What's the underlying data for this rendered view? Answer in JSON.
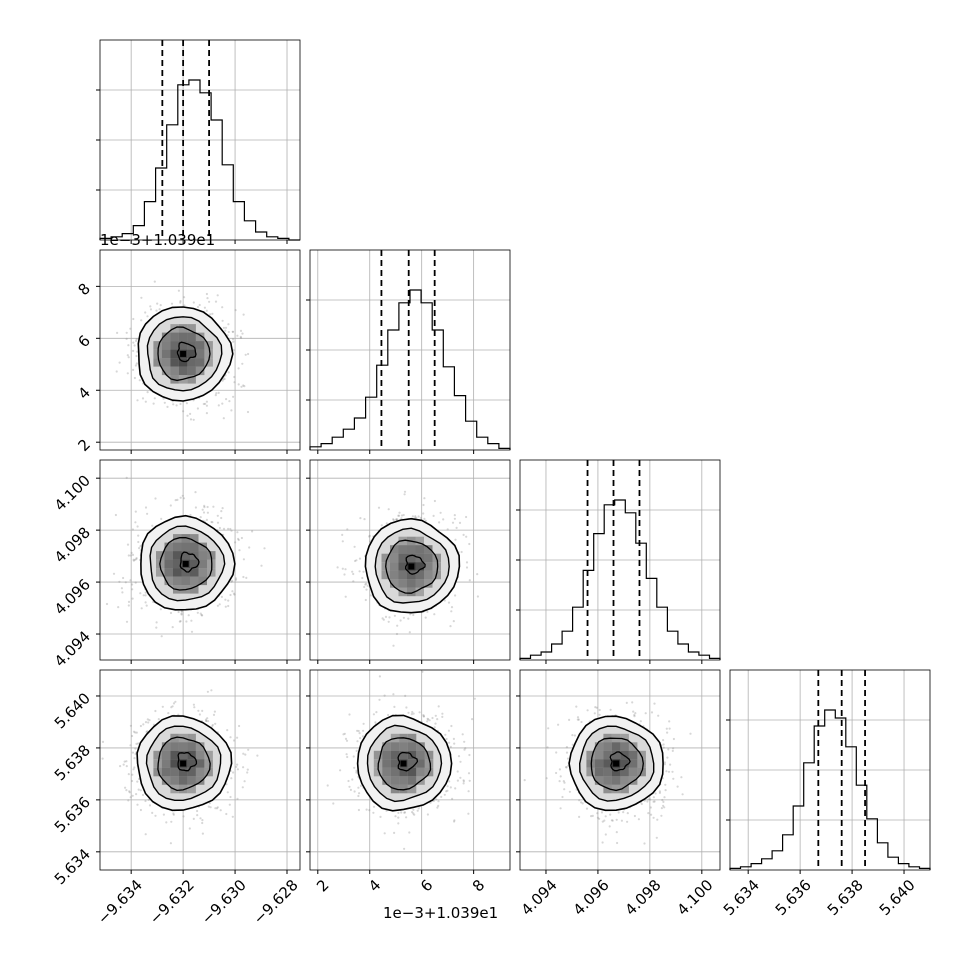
{
  "chart_data": {
    "type": "corner",
    "grid": true,
    "parameters": [
      {
        "id": "p0",
        "range": [
          -9.6352,
          -9.6275
        ],
        "ticks": [
          -9.634,
          -9.632,
          -9.63,
          -9.628
        ],
        "tick_labels": [
          "−9.634",
          "−9.632",
          "−9.630",
          "−9.628"
        ],
        "offset_label": "",
        "quantiles": [
          -9.6328,
          -9.632,
          -9.631
        ],
        "hist_counts": [
          1,
          2,
          4,
          9,
          24,
          45,
          72,
          97,
          100,
          92,
          75,
          47,
          24,
          12,
          5,
          2,
          1,
          0
        ]
      },
      {
        "id": "p1",
        "range": [
          1.7,
          9.4
        ],
        "ticks": [
          2,
          4,
          6,
          8
        ],
        "tick_labels": [
          "2",
          "4",
          "6",
          "8"
        ],
        "offset_label": "1e−3+1.039e1",
        "quantiles": [
          4.45,
          5.5,
          6.5
        ],
        "hist_counts": [
          2,
          4,
          8,
          13,
          20,
          33,
          53,
          75,
          92,
          100,
          92,
          75,
          52,
          34,
          18,
          8,
          4,
          1
        ]
      },
      {
        "id": "p2",
        "range": [
          4.093,
          4.1007
        ],
        "ticks": [
          4.094,
          4.096,
          4.098,
          4.1
        ],
        "tick_labels": [
          "4.094",
          "4.096",
          "4.098",
          "4.100"
        ],
        "offset_label": "",
        "quantiles": [
          4.0956,
          4.0966,
          4.0976
        ],
        "hist_counts": [
          1,
          3,
          5,
          10,
          18,
          33,
          56,
          79,
          97,
          100,
          92,
          73,
          51,
          33,
          18,
          10,
          5,
          3,
          1
        ]
      },
      {
        "id": "p3",
        "range": [
          5.6333,
          5.641
        ],
        "ticks": [
          5.634,
          5.636,
          5.638,
          5.64
        ],
        "tick_labels": [
          "5.634",
          "5.636",
          "5.638",
          "5.640"
        ],
        "offset_label": "",
        "quantiles": [
          5.6367,
          5.6376,
          5.6385
        ],
        "hist_counts": [
          1,
          2,
          4,
          7,
          12,
          22,
          40,
          67,
          90,
          100,
          95,
          77,
          53,
          32,
          17,
          8,
          4,
          2,
          1
        ]
      }
    ],
    "pairs": [
      {
        "x": "p0",
        "y": "p1",
        "center": [
          -9.632,
          5.4
        ]
      },
      {
        "x": "p0",
        "y": "p2",
        "center": [
          -9.6319,
          4.0967
        ]
      },
      {
        "x": "p1",
        "y": "p2",
        "center": [
          5.6,
          4.0966
        ]
      },
      {
        "x": "p0",
        "y": "p3",
        "center": [
          -9.632,
          5.6374
        ]
      },
      {
        "x": "p1",
        "y": "p3",
        "center": [
          5.3,
          5.6374
        ]
      },
      {
        "x": "p2",
        "y": "p3",
        "center": [
          4.0967,
          5.6374
        ]
      }
    ]
  }
}
